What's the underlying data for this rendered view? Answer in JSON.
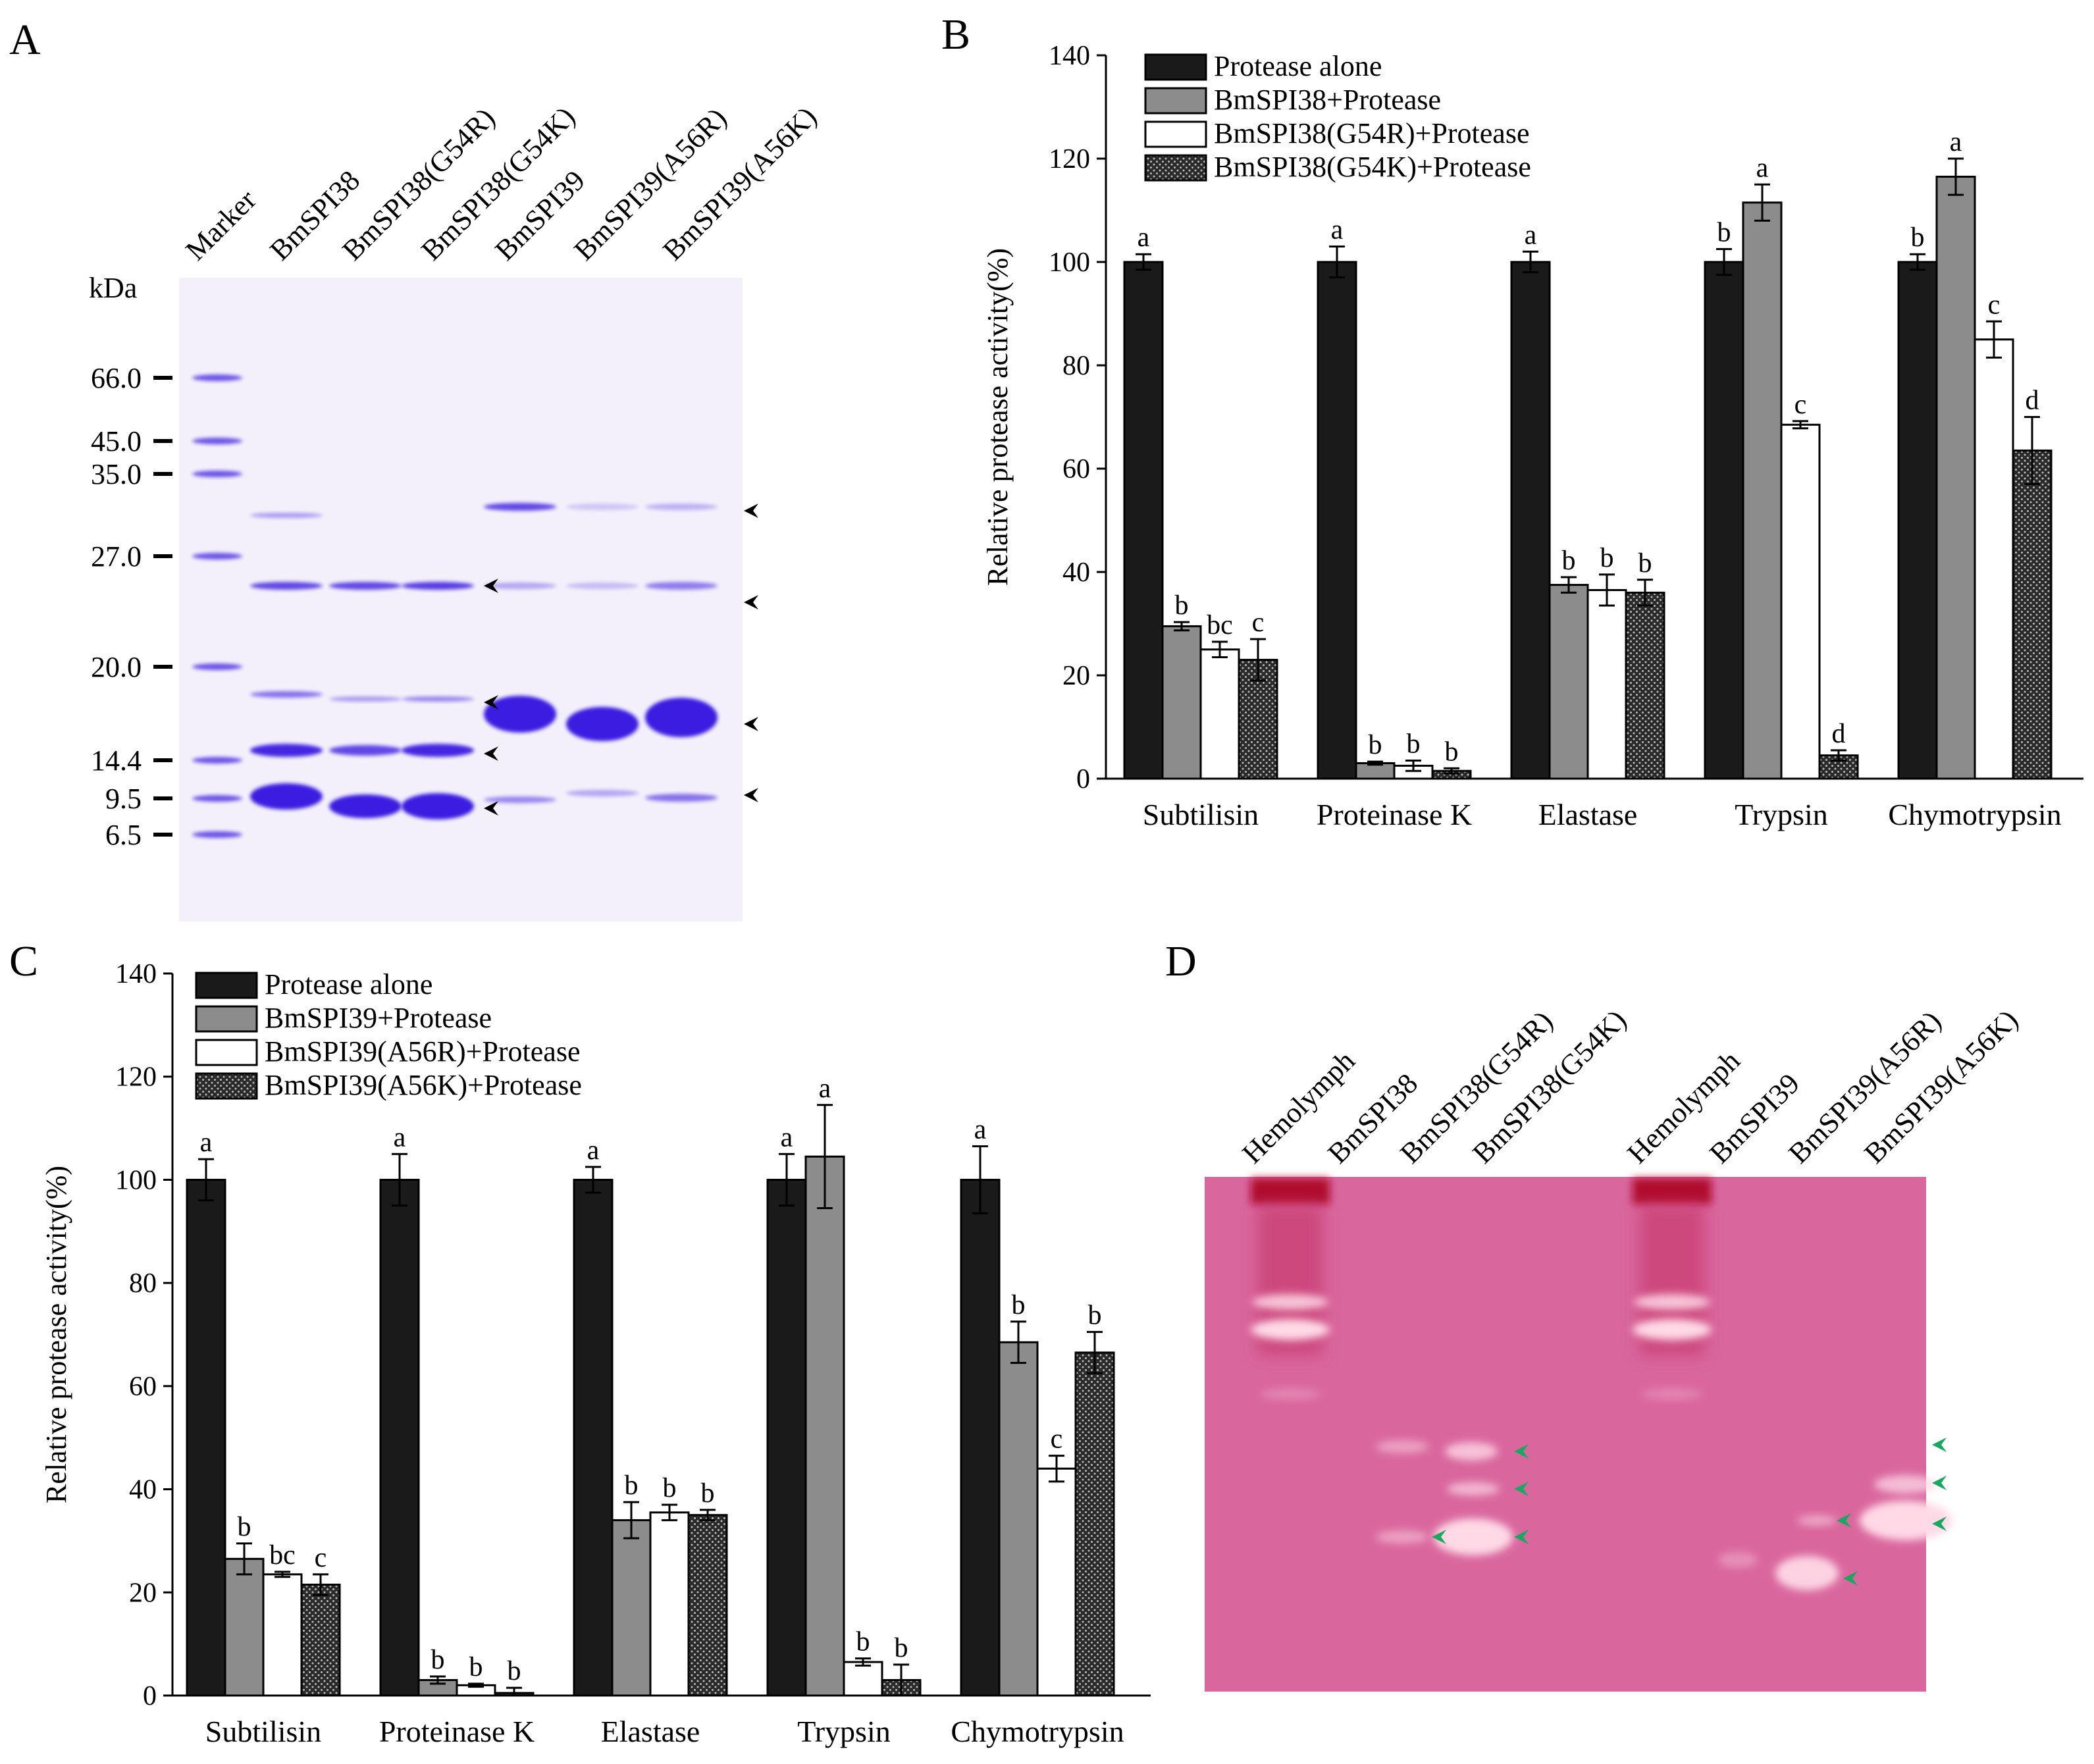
{
  "colors": {
    "black_bar": "#1a1a1a",
    "gray_bar": "#8c8c8c",
    "white_bar": "#ffffff",
    "gel_a_bg": "#f4f0fb",
    "stain_blue": "#3a1fe0",
    "zymo_bg": "#d9679e",
    "zymo_band": "#ffd9e6",
    "arrow_green": "#18a85f"
  },
  "panel_labels": {
    "a": "A",
    "b": "B",
    "c": "C",
    "d": "D"
  },
  "gel_a": {
    "unit": "kDa",
    "lanes": [
      "Marker",
      "BmSPI38",
      "BmSPI38(G54R)",
      "BmSPI38(G54K)",
      "BmSPI39",
      "BmSPI39(A56R)",
      "BmSPI39(A56K)"
    ],
    "markers": [
      "66.0",
      "45.0",
      "35.0",
      "27.0",
      "20.0",
      "14.4",
      "9.5",
      "6.5"
    ]
  },
  "gel_d": {
    "lanes": [
      "Hemolymph",
      "BmSPI38",
      "BmSPI38(G54R)",
      "BmSPI38(G54K)",
      "Hemolymph",
      "BmSPI39",
      "BmSPI39(A56R)",
      "BmSPI39(A56K)"
    ]
  },
  "chart_data": [
    {
      "id": "B",
      "type": "bar",
      "ylabel": "Relative protease activity(%)",
      "xlabel": "",
      "ylim": [
        0,
        140
      ],
      "yticks": [
        "0",
        "20",
        "40",
        "60",
        "80",
        "100",
        "120",
        "140"
      ],
      "categories": [
        "Subtilisin",
        "Proteinase K",
        "Elastase",
        "Trypsin",
        "Chymotrypsin"
      ],
      "legend_position": "top-left",
      "series": [
        {
          "name": "Protease alone",
          "values": [
            100,
            100,
            100,
            100,
            100
          ],
          "errors": [
            1.5,
            3,
            2,
            2.5,
            1.5
          ],
          "letters": [
            "a",
            "a",
            "a",
            "b",
            "b"
          ]
        },
        {
          "name": "BmSPI38+Protease",
          "values": [
            29.5,
            3,
            37.5,
            111.5,
            116.5
          ],
          "errors": [
            0.8,
            0.3,
            1.5,
            3.5,
            3.5
          ],
          "letters": [
            "b",
            "b",
            "b",
            "a",
            "a"
          ]
        },
        {
          "name": "BmSPI38(G54R)+Protease",
          "values": [
            25,
            2.5,
            36.5,
            68.5,
            85
          ],
          "errors": [
            1.5,
            1,
            3,
            0.7,
            3.5
          ],
          "letters": [
            "bc",
            "b",
            "b",
            "c",
            "c"
          ]
        },
        {
          "name": "BmSPI38(G54K)+Protease",
          "values": [
            23,
            1.5,
            36,
            4.5,
            63.5
          ],
          "errors": [
            4,
            0.5,
            2.5,
            1,
            6.5
          ],
          "letters": [
            "c",
            "b",
            "b",
            "d",
            "d"
          ]
        }
      ]
    },
    {
      "id": "C",
      "type": "bar",
      "ylabel": "Relative protease activity(%)",
      "xlabel": "",
      "ylim": [
        0,
        140
      ],
      "yticks": [
        "0",
        "20",
        "40",
        "60",
        "80",
        "100",
        "120",
        "140"
      ],
      "categories": [
        "Subtilisin",
        "Proteinase K",
        "Elastase",
        "Trypsin",
        "Chymotrypsin"
      ],
      "legend_position": "top-left",
      "series": [
        {
          "name": "Protease alone",
          "values": [
            100,
            100,
            100,
            100,
            100
          ],
          "errors": [
            4,
            5,
            2.5,
            5,
            6.5
          ],
          "letters": [
            "a",
            "a",
            "a",
            "a",
            "a"
          ]
        },
        {
          "name": "BmSPI39+Protease",
          "values": [
            26.5,
            3,
            34,
            104.5,
            68.5
          ],
          "errors": [
            3,
            0.7,
            3.5,
            10,
            4
          ],
          "letters": [
            "b",
            "b",
            "b",
            "a",
            "b"
          ]
        },
        {
          "name": "BmSPI39(A56R)+Protease",
          "values": [
            23.5,
            2,
            35.5,
            6.5,
            44
          ],
          "errors": [
            0.5,
            0.3,
            1.5,
            0.7,
            2.5
          ],
          "letters": [
            "bc",
            "b",
            "b",
            "b",
            "c"
          ]
        },
        {
          "name": "BmSPI39(A56K)+Protease",
          "values": [
            21.5,
            0.5,
            35,
            3,
            66.5
          ],
          "errors": [
            2,
            1,
            1,
            3,
            4
          ],
          "letters": [
            "c",
            "b",
            "b",
            "b",
            "b"
          ]
        }
      ]
    }
  ]
}
